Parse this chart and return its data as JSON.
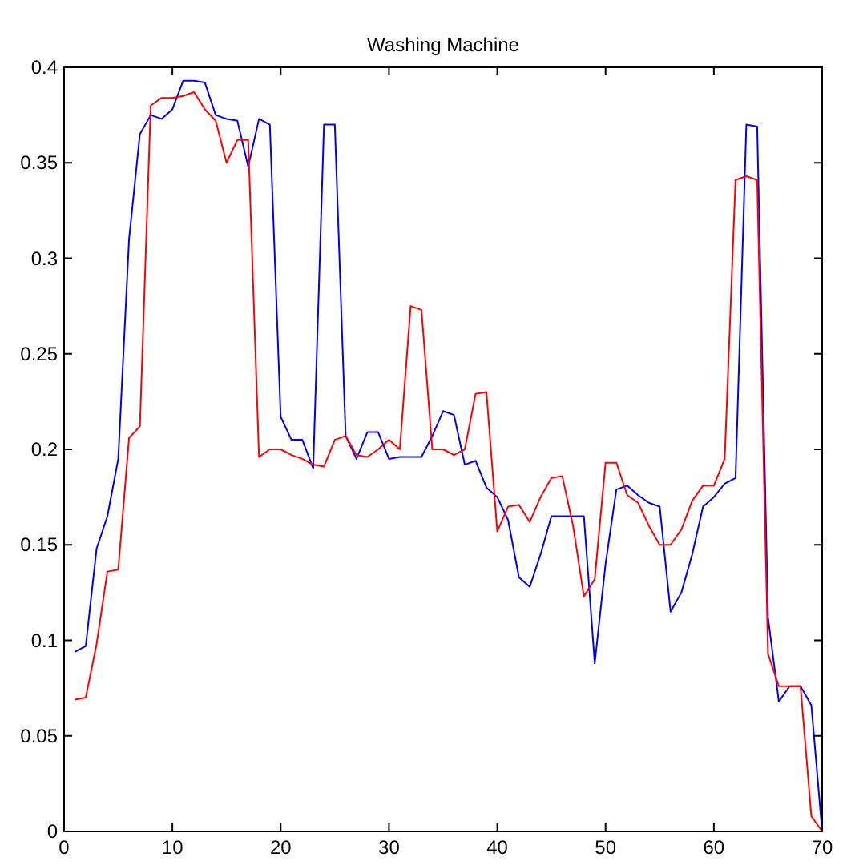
{
  "chart_data": {
    "type": "line",
    "title": "Washing Machine",
    "x": [
      1,
      2,
      3,
      4,
      5,
      6,
      7,
      8,
      9,
      10,
      11,
      12,
      13,
      14,
      15,
      16,
      17,
      18,
      19,
      20,
      21,
      22,
      23,
      24,
      25,
      26,
      27,
      28,
      29,
      30,
      31,
      32,
      33,
      34,
      35,
      36,
      37,
      38,
      39,
      40,
      41,
      42,
      43,
      44,
      45,
      46,
      47,
      48,
      49,
      50,
      51,
      52,
      53,
      54,
      55,
      56,
      57,
      58,
      59,
      60,
      61,
      62,
      63,
      64,
      65,
      66,
      67,
      68,
      69,
      70
    ],
    "series": [
      {
        "color": "#0000ff",
        "values": [
          0.094,
          0.097,
          0.148,
          0.165,
          0.195,
          0.31,
          0.365,
          0.375,
          0.373,
          0.378,
          0.393,
          0.393,
          0.392,
          0.375,
          0.373,
          0.372,
          0.348,
          0.373,
          0.37,
          0.217,
          0.205,
          0.205,
          0.19,
          0.37,
          0.37,
          0.207,
          0.195,
          0.209,
          0.209,
          0.195,
          0.196,
          0.196,
          0.196,
          0.207,
          0.22,
          0.218,
          0.192,
          0.194,
          0.18,
          0.175,
          0.163,
          0.133,
          0.128,
          0.145,
          0.165,
          0.165,
          0.165,
          0.165,
          0.088,
          0.14,
          0.179,
          0.181,
          0.176,
          0.172,
          0.17,
          0.115,
          0.125,
          0.145,
          0.17,
          0.175,
          0.182,
          0.185,
          0.37,
          0.369,
          0.112,
          0.068,
          0.076,
          0.076,
          0.066,
          0
        ]
      },
      {
        "color": "#ff0000",
        "values": [
          0.069,
          0.07,
          0.098,
          0.136,
          0.137,
          0.206,
          0.212,
          0.38,
          0.384,
          0.384,
          0.385,
          0.387,
          0.378,
          0.372,
          0.35,
          0.362,
          0.362,
          0.196,
          0.2,
          0.2,
          0.197,
          0.195,
          0.192,
          0.191,
          0.205,
          0.207,
          0.197,
          0.196,
          0.2,
          0.205,
          0.2,
          0.275,
          0.273,
          0.2,
          0.2,
          0.197,
          0.2,
          0.229,
          0.23,
          0.157,
          0.17,
          0.171,
          0.162,
          0.175,
          0.185,
          0.186,
          0.16,
          0.123,
          0.132,
          0.193,
          0.193,
          0.176,
          0.172,
          0.16,
          0.15,
          0.15,
          0.158,
          0.173,
          0.181,
          0.181,
          0.195,
          0.341,
          0.343,
          0.341,
          0.093,
          0.076,
          0.076,
          0.076,
          0.008,
          0
        ]
      }
    ],
    "xlim": [
      0,
      70
    ],
    "xticks": [
      0,
      10,
      20,
      30,
      40,
      50,
      60,
      70
    ],
    "ylim": [
      0,
      0.4
    ],
    "yticks": [
      0,
      0.05,
      0.1,
      0.15,
      0.2,
      0.25,
      0.3,
      0.35,
      0.4
    ],
    "grid": false
  }
}
